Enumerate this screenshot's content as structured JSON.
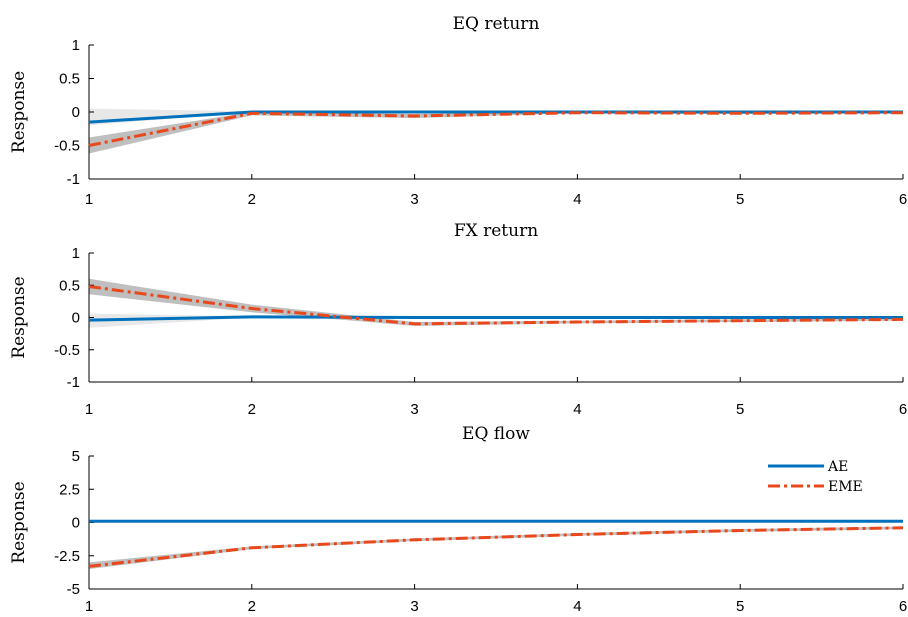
{
  "chart_data": [
    {
      "type": "line",
      "title": "EQ return",
      "ylabel": "Response",
      "xlabel": "",
      "x": [
        1,
        2,
        3,
        4,
        5,
        6
      ],
      "xlim": [
        1,
        6
      ],
      "ylim": [
        -1,
        1
      ],
      "yticks": [
        "1",
        "0.5",
        "0",
        "-0.5",
        "-1"
      ],
      "ytick_values": [
        1,
        0.5,
        0,
        -0.5,
        -1
      ],
      "xticks": [
        "1",
        "2",
        "3",
        "4",
        "5",
        "6"
      ],
      "series": [
        {
          "key": "AE",
          "color": "#0072BD",
          "style": "solid",
          "values": [
            -0.15,
            0.0,
            0.0,
            0.0,
            0.0,
            0.0
          ],
          "band_lower": [
            -0.2,
            0.0,
            0.0,
            0.0,
            0.0,
            0.0
          ],
          "band_upper": [
            0.05,
            0.01,
            0.01,
            0.0,
            0.0,
            0.0
          ]
        },
        {
          "key": "EME",
          "color": "#E8481C",
          "style": "dashdot",
          "values": [
            -0.5,
            -0.02,
            -0.06,
            -0.01,
            -0.02,
            -0.01
          ],
          "band_lower": [
            -0.62,
            -0.05,
            -0.09,
            -0.02,
            -0.03,
            -0.02
          ],
          "band_upper": [
            -0.38,
            0.0,
            -0.03,
            0.0,
            0.0,
            0.0
          ]
        }
      ],
      "grid": false
    },
    {
      "type": "line",
      "title": "FX return",
      "ylabel": "Response",
      "xlabel": "",
      "x": [
        1,
        2,
        3,
        4,
        5,
        6
      ],
      "xlim": [
        1,
        6
      ],
      "ylim": [
        -1,
        1
      ],
      "yticks": [
        "1",
        "0.5",
        "0",
        "-0.5",
        "-1"
      ],
      "ytick_values": [
        1,
        0.5,
        0,
        -0.5,
        -1
      ],
      "xticks": [
        "1",
        "2",
        "3",
        "4",
        "5",
        "6"
      ],
      "series": [
        {
          "key": "AE",
          "color": "#0072BD",
          "style": "solid",
          "values": [
            -0.04,
            0.01,
            0.0,
            0.0,
            0.0,
            0.0
          ],
          "band_lower": [
            -0.16,
            0.0,
            0.0,
            0.0,
            0.0,
            0.0
          ],
          "band_upper": [
            0.06,
            0.02,
            0.01,
            0.0,
            0.0,
            0.0
          ]
        },
        {
          "key": "EME",
          "color": "#E8481C",
          "style": "dashdot",
          "values": [
            0.48,
            0.14,
            -0.1,
            -0.07,
            -0.05,
            -0.03
          ],
          "band_lower": [
            0.36,
            0.08,
            -0.13,
            -0.09,
            -0.07,
            -0.05
          ],
          "band_upper": [
            0.6,
            0.2,
            -0.07,
            -0.05,
            -0.03,
            -0.01
          ]
        }
      ],
      "grid": false
    },
    {
      "type": "line",
      "title": "EQ flow",
      "ylabel": "Response",
      "xlabel": "",
      "x": [
        1,
        2,
        3,
        4,
        5,
        6
      ],
      "xlim": [
        1,
        6
      ],
      "ylim": [
        -5,
        5
      ],
      "yticks": [
        "5",
        "2.5",
        "0",
        "-2.5",
        "-5"
      ],
      "ytick_values": [
        5,
        2.5,
        0,
        -2.5,
        -5
      ],
      "xticks": [
        "1",
        "2",
        "3",
        "4",
        "5",
        "6"
      ],
      "series": [
        {
          "key": "AE",
          "name": "AE",
          "color": "#0072BD",
          "style": "solid",
          "values": [
            0.1,
            0.1,
            0.1,
            0.1,
            0.1,
            0.1
          ],
          "band_lower": [
            0.05,
            0.05,
            0.05,
            0.05,
            0.05,
            0.05
          ],
          "band_upper": [
            0.15,
            0.15,
            0.15,
            0.15,
            0.15,
            0.15
          ]
        },
        {
          "key": "EME",
          "name": "EME",
          "color": "#E8481C",
          "style": "dashdot",
          "values": [
            -3.3,
            -1.9,
            -1.3,
            -0.9,
            -0.6,
            -0.4
          ],
          "band_lower": [
            -3.5,
            -2.0,
            -1.4,
            -1.0,
            -0.7,
            -0.5
          ],
          "band_upper": [
            -3.0,
            -1.8,
            -1.2,
            -0.8,
            -0.5,
            -0.3
          ]
        }
      ],
      "legend": "top-right",
      "grid": false
    }
  ]
}
